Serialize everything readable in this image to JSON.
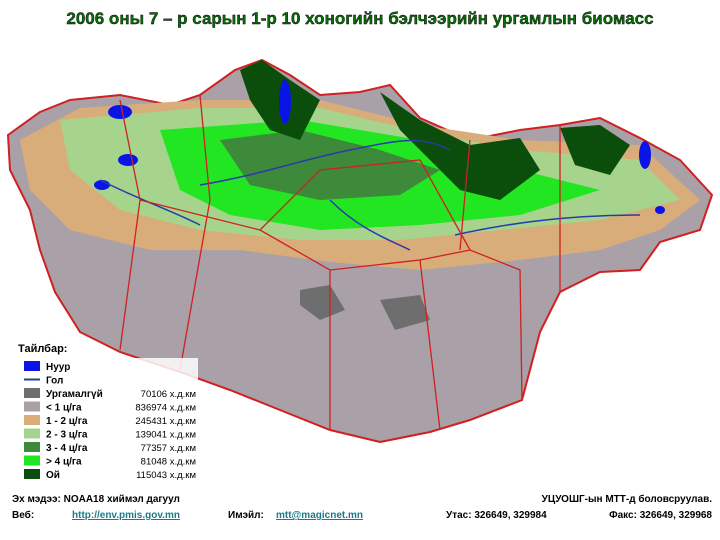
{
  "title": "2006 оны 7 – р сарын 1-р 10 хоногийн бэлчээрийн ургамлын биомасс",
  "legend": {
    "title": "Тайлбар:",
    "items": [
      {
        "label": "Нуур",
        "color": "#0a14e6",
        "swatch": "box"
      },
      {
        "label": "Гол",
        "color": "#2a3aa8",
        "swatch": "line"
      },
      {
        "label": "Ургамалгүй",
        "color": "#6e6e6e",
        "swatch": "box",
        "area": "70106 х.д.км"
      },
      {
        "label": "< 1 ц/га",
        "color": "#aaa0a8",
        "swatch": "box",
        "area": "836974 х.д.км"
      },
      {
        "label": "1 - 2 ц/га",
        "color": "#d9ad7a",
        "swatch": "box",
        "area": "245431 х.д.км"
      },
      {
        "label": "2 - 3 ц/га",
        "color": "#a6d48c",
        "swatch": "box",
        "area": "139041 х.д.км"
      },
      {
        "label": "3 - 4 ц/га",
        "color": "#3d8a3a",
        "swatch": "box",
        "area": "77357 х.д.км"
      },
      {
        "label": "> 4 ц/га",
        "color": "#22e622",
        "swatch": "box",
        "area": "81048 х.д.км"
      },
      {
        "label": "Ой",
        "color": "#0b4d0b",
        "swatch": "box",
        "area": "115043 х.д.км"
      }
    ]
  },
  "footer": {
    "source": "Эх мэдээ: NOAA18 хиймэл дагуул",
    "web_label": "Веб:",
    "web": "http://env.pmis.gov.mn",
    "email_label": "Имэйл:",
    "email": "mtt@magicnet.mn",
    "prepared": "УЦУОШГ-ын МТТ-д боловсруулав.",
    "phone": "Утас: 326649, 329984",
    "fax": "Факс: 326649, 329968"
  }
}
